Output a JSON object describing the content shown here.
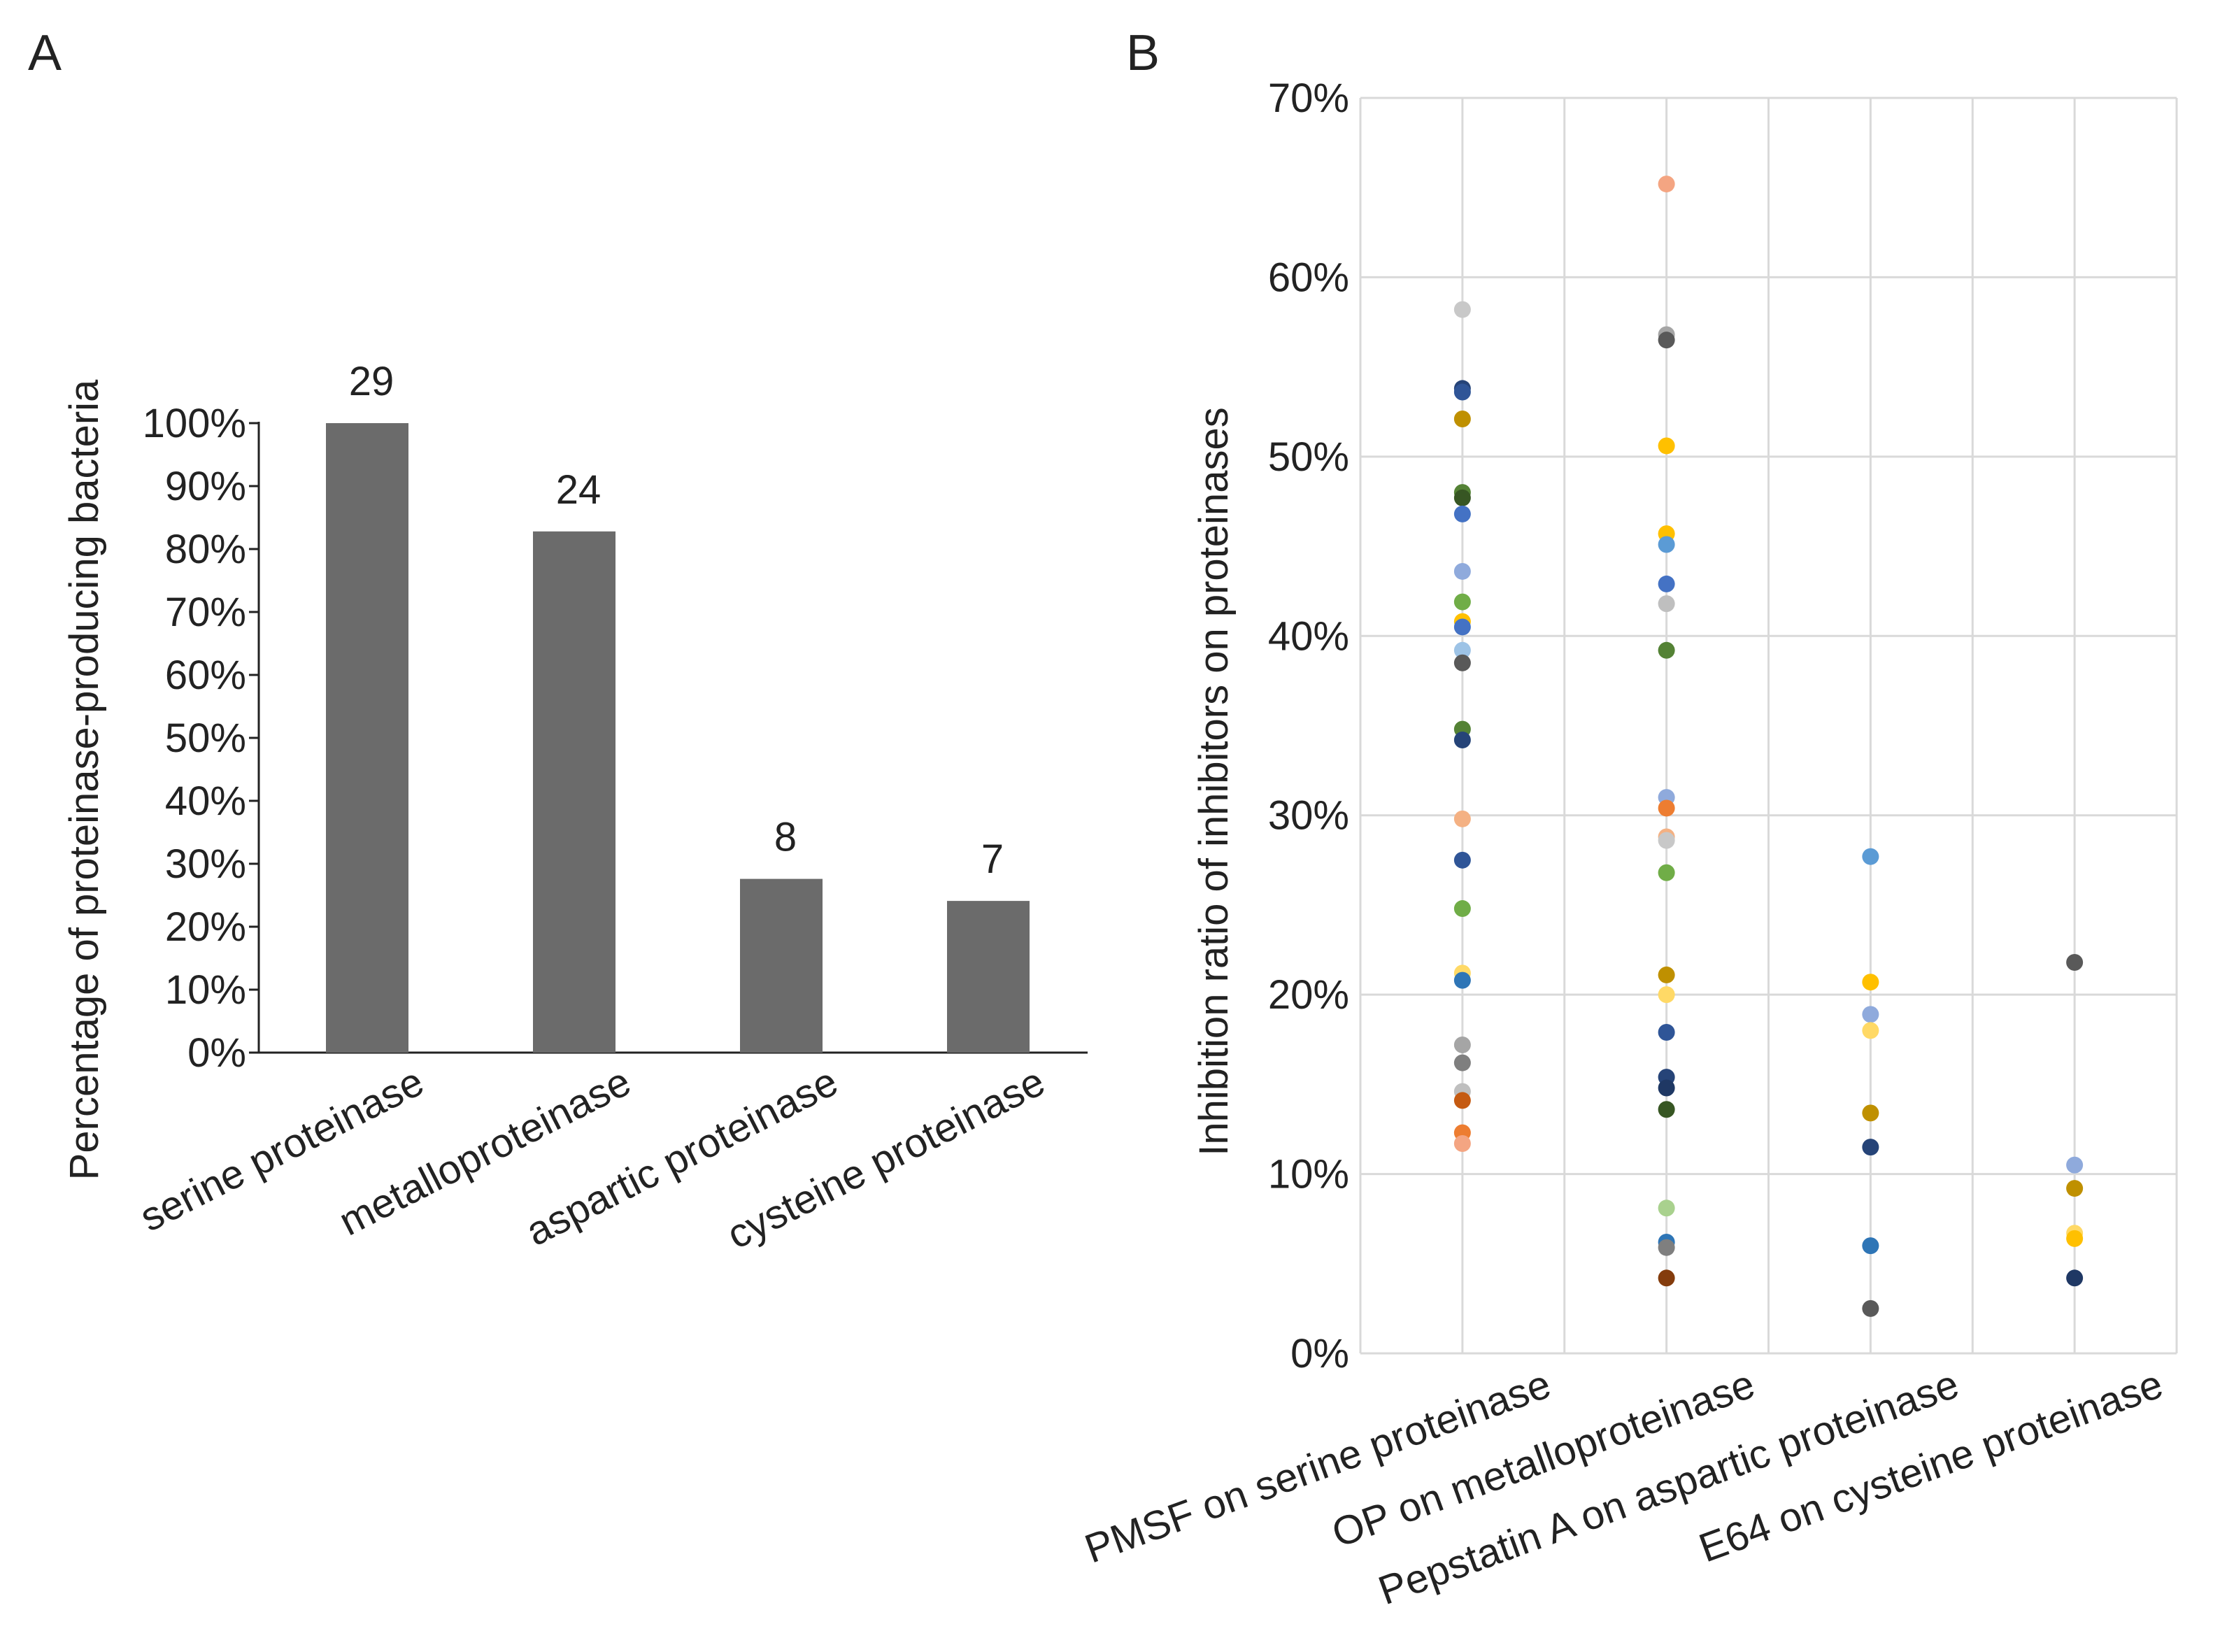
{
  "colors": {
    "bar": "#6b6b6b",
    "axis": "#222222",
    "grid": "#d9d9d9",
    "text": "#222222"
  },
  "chart_data": [
    {
      "panel": "A",
      "type": "bar",
      "title": "",
      "xlabel": "",
      "ylabel": "Percentage of proteinase-producing bacteria",
      "ylim": [
        0,
        100
      ],
      "yticks": [
        "0%",
        "10%",
        "20%",
        "30%",
        "40%",
        "50%",
        "60%",
        "70%",
        "80%",
        "90%",
        "100%"
      ],
      "grid": false,
      "categories": [
        "serine proteinase",
        "metalloproteinase",
        "aspartic proteinase",
        "cysteine proteinase"
      ],
      "values": [
        100,
        82.8,
        27.6,
        24.1
      ],
      "data_labels": [
        "29",
        "24",
        "8",
        "7"
      ]
    },
    {
      "panel": "B",
      "type": "scatter",
      "title": "",
      "xlabel": "",
      "ylabel": "Inhibition ratio of inhibitors on proteinases",
      "ylim": [
        0,
        70
      ],
      "yticks": [
        "0%",
        "10%",
        "20%",
        "30%",
        "40%",
        "50%",
        "60%",
        "70%"
      ],
      "grid": true,
      "categories": [
        "PMSF on serine proteinase",
        "OP on metalloproteinase",
        "Pepstatin A on aspartic proteinase",
        "E64 on cysteine proteinase"
      ],
      "points": [
        [
          [
            58.2,
            "#c8c8c8"
          ],
          [
            53.8,
            "#264478"
          ],
          [
            53.6,
            "#2f5597"
          ],
          [
            52.1,
            "#bf9000"
          ],
          [
            48.0,
            "#548235"
          ],
          [
            47.7,
            "#375623"
          ],
          [
            46.8,
            "#4472c4"
          ],
          [
            43.6,
            "#8faadc"
          ],
          [
            41.9,
            "#70ad47"
          ],
          [
            40.8,
            "#ffc000"
          ],
          [
            40.5,
            "#4472c4"
          ],
          [
            39.2,
            "#9dc3e6"
          ],
          [
            38.5,
            "#595959"
          ],
          [
            34.8,
            "#548235"
          ],
          [
            34.2,
            "#264478"
          ],
          [
            29.8,
            "#f4b183"
          ],
          [
            27.5,
            "#2f5597"
          ],
          [
            24.8,
            "#70ad47"
          ],
          [
            21.2,
            "#ffd966"
          ],
          [
            20.8,
            "#2e75b6"
          ],
          [
            17.2,
            "#a5a5a5"
          ],
          [
            16.2,
            "#7f7f7f"
          ],
          [
            14.6,
            "#bfbfbf"
          ],
          [
            14.1,
            "#c55a11"
          ],
          [
            12.3,
            "#ed7d31"
          ],
          [
            11.7,
            "#f4a582"
          ]
        ],
        [
          [
            65.2,
            "#f4a582"
          ],
          [
            56.8,
            "#a5a5a5"
          ],
          [
            56.5,
            "#595959"
          ],
          [
            50.6,
            "#ffc000"
          ],
          [
            45.7,
            "#ffc000"
          ],
          [
            45.1,
            "#5b9bd5"
          ],
          [
            42.9,
            "#4472c4"
          ],
          [
            41.8,
            "#bfbfbf"
          ],
          [
            39.2,
            "#548235"
          ],
          [
            31.0,
            "#8faadc"
          ],
          [
            30.4,
            "#ed7d31"
          ],
          [
            28.8,
            "#f4b183"
          ],
          [
            28.6,
            "#c8c8c8"
          ],
          [
            26.8,
            "#70ad47"
          ],
          [
            21.1,
            "#bf9000"
          ],
          [
            20.0,
            "#ffd966"
          ],
          [
            17.9,
            "#2f5597"
          ],
          [
            15.4,
            "#264478"
          ],
          [
            14.8,
            "#1f3864"
          ],
          [
            13.6,
            "#375623"
          ],
          [
            8.1,
            "#a9d18e"
          ],
          [
            6.2,
            "#2e75b6"
          ],
          [
            5.9,
            "#7f7f7f"
          ],
          [
            4.2,
            "#843c0c"
          ]
        ],
        [
          [
            27.7,
            "#5b9bd5"
          ],
          [
            20.7,
            "#ffc000"
          ],
          [
            18.9,
            "#8faadc"
          ],
          [
            18.0,
            "#ffd966"
          ],
          [
            13.4,
            "#bf9000"
          ],
          [
            11.5,
            "#264478"
          ],
          [
            6.0,
            "#2e75b6"
          ],
          [
            2.5,
            "#595959"
          ]
        ],
        [
          [
            21.8,
            "#595959"
          ],
          [
            10.5,
            "#8faadc"
          ],
          [
            9.2,
            "#bf9000"
          ],
          [
            6.7,
            "#ffd966"
          ],
          [
            6.4,
            "#ffc000"
          ],
          [
            4.2,
            "#1f3864"
          ]
        ]
      ]
    }
  ]
}
